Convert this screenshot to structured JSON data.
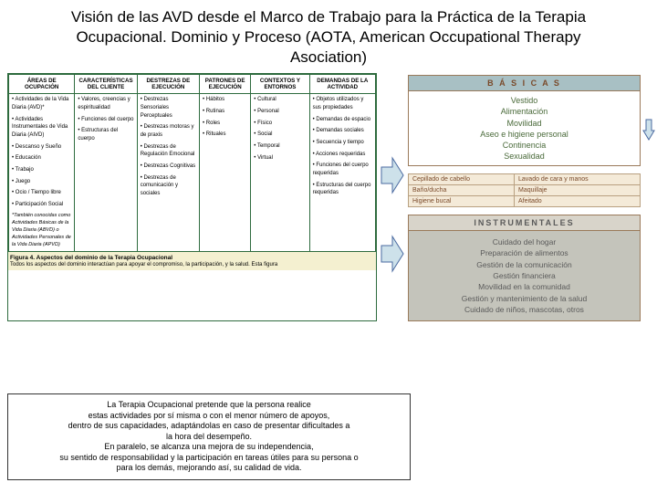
{
  "title": "Visión de las AVD desde el Marco de Trabajo para la Práctica de la Terapia Ocupacional. Dominio y Proceso (AOTA, American Occupational Therapy Asociation)",
  "domain_table": {
    "headers": [
      "ÁREAS DE OCUPACIÓN",
      "CARACTERÍSTICAS DEL CLIENTE",
      "DESTREZAS DE EJECUCIÓN",
      "PATRONES DE EJECUCIÓN",
      "CONTEXTOS Y ENTORNOS",
      "DEMANDAS DE LA ACTIVIDAD"
    ],
    "col0": [
      "Actividades de la Vida Diaria (AVD)*",
      "Actividades Instrumentales de Vida Diaria (AIVD)",
      "Descanso y Sueño",
      "Educación",
      "Trabajo",
      "Juego",
      "Ocio / Tiempo libre",
      "Participación Social"
    ],
    "col0_note": "*También conocidas como Actividades Básicas de la Vida Diaria (ABVD) o Actividades Personales de la Vida Diaria (APVD)",
    "col1": [
      "Valores, creencias y espiritualidad",
      "Funciones del cuerpo",
      "Estructuras del cuerpo"
    ],
    "col2": [
      "Destrezas Sensoriales Perceptuales",
      "Destrezas motoras y de praxis",
      "Destrezas de Regulación Emocional",
      "Destrezas Cognitivas",
      "Destrezas de comunicación y sociales"
    ],
    "col3": [
      "Hábitos",
      "Rutinas",
      "Roles",
      "Rituales"
    ],
    "col4": [
      "Cultural",
      "Personal",
      "Físico",
      "Social",
      "Temporal",
      "Virtual"
    ],
    "col5": [
      "Objetos utilizados y sus propiedades",
      "Demandas de espacio",
      "Demandas sociales",
      "Secuencia y tiempo",
      "Acciones requeridas",
      "Funciones del cuerpo requeridas",
      "Estructuras del cuerpo requeridas"
    ],
    "footer_title": "Figura 4. Aspectos del dominio de la Terapia Ocupacional",
    "footer_text": "Todos los aspectos del dominio interactúan para apoyar el compromiso, la participación, y la salud. Esta figura"
  },
  "arrow_fill": "#cde1ea",
  "arrow_stroke": "#4a6aa0",
  "basicas": {
    "head": "B Á S I C A S",
    "items": [
      "Vestido",
      "Alimentación",
      "Movilidad",
      "Aseo e higiene personal",
      "Continencia",
      "Sexualidad"
    ]
  },
  "sub": {
    "r1c1": "Cepillado de cabello",
    "r1c2": "Lavado de cara y manos",
    "r2c1": "Baño/ducha",
    "r2c2": "Maquillaje",
    "r3c1": "Higiene bucal",
    "r3c2": "Afeitado"
  },
  "instr": {
    "head": "INSTRUMENTALES",
    "items": [
      "Cuidado del hogar",
      "Preparación de alimentos",
      "Gestión de la comunicación",
      "Gestión financiera",
      "Movilidad en la comunidad",
      "Gestión y mantenimiento de la salud",
      "Cuidado de niños, mascotas, otros"
    ]
  },
  "bottom": "La Terapia Ocupacional pretende que la persona realice\nestas actividades por sí misma o con el menor número de apoyos,\ndentro de sus capacidades, adaptándolas en caso de presentar dificultades a\nla hora del desempeño.\nEn paralelo, se alcanza una mejora de su independencia,\nsu sentido de responsabilidad y la participación en tareas útiles para su persona o\npara los demás, mejorando así, su calidad de vida."
}
